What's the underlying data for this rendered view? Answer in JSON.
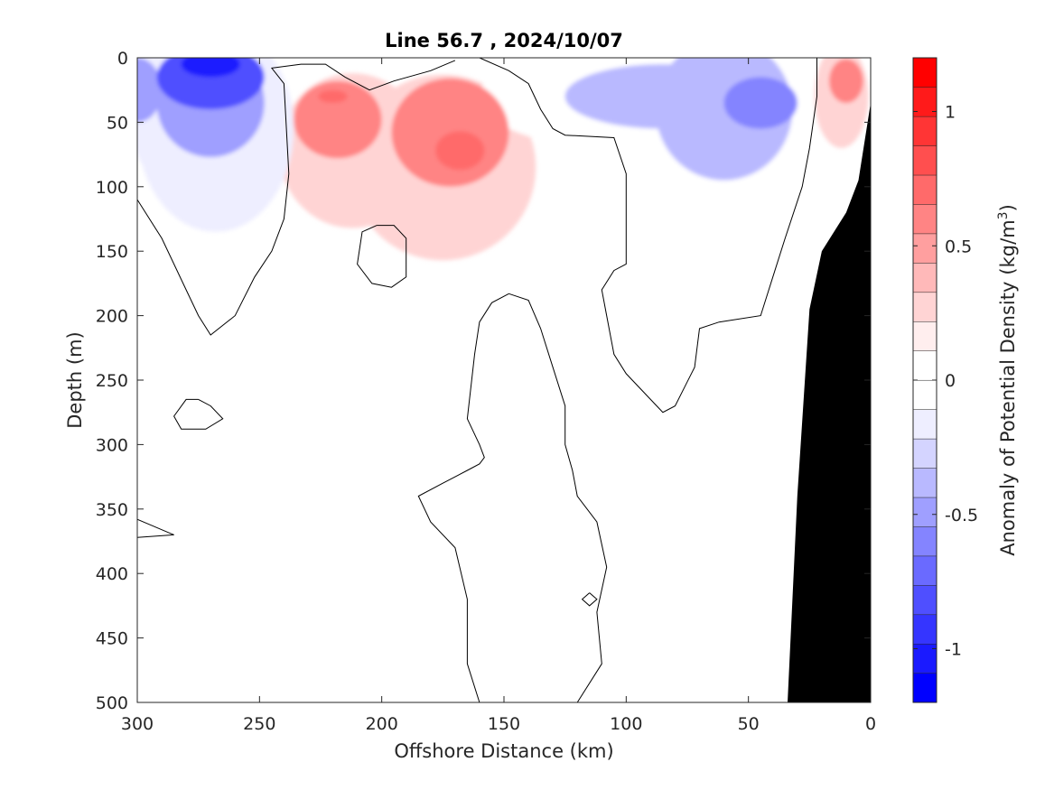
{
  "chart_data": {
    "type": "heatmap",
    "title": "Line 56.7 , 2024/10/07",
    "xlabel": "Offshore Distance (km)",
    "ylabel": "Depth (m)",
    "xlim": [
      300,
      0
    ],
    "ylim": [
      0,
      500
    ],
    "x_reversed": true,
    "y_reversed": true,
    "x_ticks": [
      "300",
      "250",
      "200",
      "150",
      "100",
      "50",
      "0"
    ],
    "y_ticks": [
      "0",
      "50",
      "100",
      "150",
      "200",
      "250",
      "300",
      "350",
      "400",
      "450",
      "500"
    ],
    "colorbar": {
      "label": "Anomaly of Potential Density",
      "units": "(kg/m",
      "units_power": "3",
      "units_close": ")",
      "range": [
        -1.2,
        1.2
      ],
      "step": 0.1,
      "ticks": [
        "-1",
        "-0.5",
        "0",
        "0.5",
        "1"
      ],
      "colors": [
        "#0000ff",
        "#1a1aff",
        "#3535ff",
        "#4f4fff",
        "#6a6aff",
        "#8484ff",
        "#9f9fff",
        "#b9b9ff",
        "#d4d4ff",
        "#eeeeff",
        "#ffffff",
        "#ffffff",
        "#ffeeee",
        "#ffd4d4",
        "#ffb9b9",
        "#ff9f9f",
        "#ff8484",
        "#ff6a6a",
        "#ff4f4f",
        "#ff3535",
        "#ff1a1a",
        "#ff0000"
      ]
    },
    "blobs": [
      {
        "x": 290,
        "y": 30,
        "rx": 14,
        "ry": 65,
        "value": -0.25
      },
      {
        "x": 268,
        "y": 55,
        "rx": 32,
        "ry": 80,
        "value": -0.25
      },
      {
        "x": 270,
        "y": 35,
        "rx": 22,
        "ry": 42,
        "value": -0.55
      },
      {
        "x": 270,
        "y": 15,
        "rx": 22,
        "ry": 25,
        "value": -0.85
      },
      {
        "x": 270,
        "y": 5,
        "rx": 12,
        "ry": 10,
        "value": -1.05
      },
      {
        "x": 300,
        "y": 25,
        "rx": 10,
        "ry": 25,
        "value": -0.55
      },
      {
        "x": 212,
        "y": 72,
        "rx": 30,
        "ry": 60,
        "value": 0.2
      },
      {
        "x": 175,
        "y": 85,
        "rx": 38,
        "ry": 72,
        "value": 0.2
      },
      {
        "x": 218,
        "y": 48,
        "rx": 18,
        "ry": 30,
        "value": 0.4
      },
      {
        "x": 172,
        "y": 58,
        "rx": 24,
        "ry": 42,
        "value": 0.4
      },
      {
        "x": 168,
        "y": 72,
        "rx": 10,
        "ry": 15,
        "value": 0.6
      },
      {
        "x": 220,
        "y": 30,
        "rx": 6,
        "ry": 5,
        "value": 0.6
      },
      {
        "x": 75,
        "y": 50,
        "rx": 60,
        "ry": 80,
        "value": -0.2
      },
      {
        "x": 105,
        "y": 30,
        "rx": 55,
        "ry": 40,
        "value": -0.2
      },
      {
        "x": 60,
        "y": 40,
        "rx": 28,
        "ry": 55,
        "value": -0.4
      },
      {
        "x": 85,
        "y": 30,
        "rx": 40,
        "ry": 25,
        "value": -0.4
      },
      {
        "x": 45,
        "y": 35,
        "rx": 15,
        "ry": 20,
        "value": -0.6
      },
      {
        "x": 12,
        "y": 30,
        "rx": 11,
        "ry": 40,
        "value": 0.2
      },
      {
        "x": 10,
        "y": 18,
        "rx": 7,
        "ry": 17,
        "value": 0.4
      }
    ],
    "contour_zero": [
      [
        [
          300,
          110
        ],
        [
          290,
          140
        ],
        [
          280,
          180
        ],
        [
          275,
          200
        ],
        [
          270,
          215
        ],
        [
          260,
          200
        ],
        [
          252,
          170
        ],
        [
          245,
          150
        ],
        [
          240,
          125
        ],
        [
          238,
          90
        ],
        [
          240,
          20
        ],
        [
          245,
          8
        ],
        [
          233,
          5
        ],
        [
          223,
          5
        ],
        [
          215,
          15
        ],
        [
          205,
          25
        ],
        [
          195,
          18
        ],
        [
          180,
          10
        ],
        [
          170,
          2
        ]
      ],
      [
        [
          160,
          0
        ],
        [
          148,
          10
        ],
        [
          140,
          20
        ],
        [
          135,
          40
        ],
        [
          130,
          55
        ],
        [
          125,
          60
        ],
        [
          105,
          62
        ],
        [
          100,
          90
        ],
        [
          100,
          160
        ],
        [
          105,
          165
        ],
        [
          110,
          180
        ],
        [
          108,
          200
        ],
        [
          105,
          230
        ],
        [
          100,
          245
        ],
        [
          85,
          275
        ],
        [
          80,
          270
        ],
        [
          72,
          240
        ],
        [
          70,
          210
        ],
        [
          62,
          205
        ],
        [
          45,
          200
        ],
        [
          40,
          170
        ],
        [
          35,
          140
        ],
        [
          28,
          100
        ],
        [
          25,
          70
        ],
        [
          22,
          30
        ],
        [
          22,
          0
        ]
      ],
      [
        [
          202,
          130
        ],
        [
          208,
          135
        ],
        [
          210,
          160
        ],
        [
          204,
          175
        ],
        [
          196,
          178
        ],
        [
          190,
          170
        ],
        [
          190,
          140
        ],
        [
          195,
          130
        ],
        [
          202,
          130
        ]
      ],
      [
        [
          275,
          265
        ],
        [
          270,
          270
        ],
        [
          265,
          280
        ],
        [
          272,
          288
        ],
        [
          282,
          288
        ],
        [
          285,
          278
        ],
        [
          280,
          265
        ],
        [
          275,
          265
        ]
      ],
      [
        [
          300,
          358
        ],
        [
          295,
          362
        ],
        [
          285,
          370
        ],
        [
          300,
          372
        ]
      ],
      [
        [
          148,
          183
        ],
        [
          155,
          190
        ],
        [
          160,
          205
        ],
        [
          162,
          230
        ],
        [
          165,
          280
        ],
        [
          160,
          300
        ],
        [
          158,
          310
        ],
        [
          160,
          315
        ],
        [
          165,
          320
        ],
        [
          175,
          330
        ],
        [
          185,
          340
        ],
        [
          180,
          360
        ],
        [
          170,
          380
        ],
        [
          165,
          420
        ],
        [
          165,
          470
        ],
        [
          160,
          500
        ]
      ],
      [
        [
          148,
          183
        ],
        [
          140,
          188
        ],
        [
          135,
          210
        ],
        [
          130,
          240
        ],
        [
          125,
          270
        ],
        [
          125,
          300
        ],
        [
          122,
          320
        ],
        [
          120,
          340
        ],
        [
          112,
          360
        ],
        [
          108,
          395
        ],
        [
          112,
          430
        ],
        [
          110,
          470
        ],
        [
          120,
          500
        ]
      ],
      [
        [
          115,
          415
        ],
        [
          112,
          420
        ],
        [
          115,
          425
        ],
        [
          118,
          420
        ],
        [
          115,
          415
        ]
      ]
    ],
    "land": [
      [
        34,
        500
      ],
      [
        30,
        340
      ],
      [
        25,
        195
      ],
      [
        20,
        150
      ],
      [
        10,
        120
      ],
      [
        5,
        95
      ],
      [
        0,
        35
      ],
      [
        0,
        500
      ]
    ]
  }
}
